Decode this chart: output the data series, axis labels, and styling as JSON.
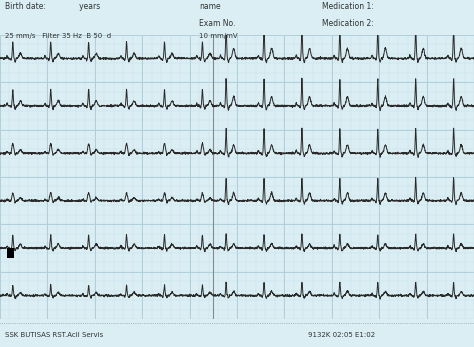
{
  "background_color": "#daeef3",
  "grid_major_color": "#b0d0dc",
  "grid_minor_color": "#c8e4ec",
  "ecg_color": "#2a2a2a",
  "header_text_color": "#333333",
  "footer_text_color": "#333333",
  "header_left": "Birth date:              years",
  "header_settings": "25 mm/s   Filter 35 Hz  B 50  d",
  "header_settings2": "10 mm/mV",
  "footer_left": "SSK BUTISAS RST.Acil Servis",
  "footer_right": "9132K 02:05 E1:02",
  "num_rows": 6,
  "figsize": [
    4.74,
    3.47
  ],
  "dpi": 100
}
